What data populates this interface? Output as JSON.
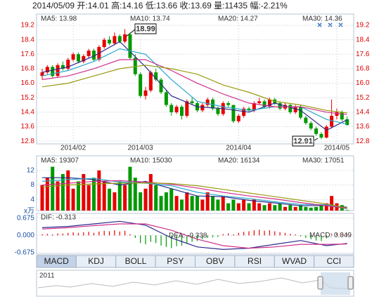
{
  "header": "2014/05/09 开:14.01 高:14.16 低:13.66 收:13.69 量:11435 幅:-2.21%",
  "chart_data": [
    {
      "type": "candlestick",
      "up_color": "#e60000",
      "down_color": "#009900",
      "categories": [
        null,
        null,
        null,
        null,
        null,
        null,
        "2014/02",
        null,
        null,
        null,
        null,
        null,
        null,
        null,
        null,
        null,
        null,
        null,
        null,
        "2014/03",
        null,
        null,
        null,
        null,
        null,
        null,
        null,
        null,
        null,
        null,
        null,
        null,
        null,
        null,
        null,
        null,
        null,
        null,
        "2014/04",
        null,
        null,
        null,
        null,
        null,
        null,
        null,
        null,
        null,
        null,
        null,
        null,
        null,
        null,
        null,
        null,
        null,
        null,
        "2014/05",
        null,
        null
      ],
      "values": [
        [
          16.4,
          16.8,
          16.2,
          16.6
        ],
        [
          16.6,
          17.0,
          16.5,
          16.9
        ],
        [
          16.9,
          17.0,
          16.3,
          16.4
        ],
        [
          16.4,
          17.1,
          16.3,
          17.0
        ],
        [
          17.0,
          17.2,
          16.7,
          16.8
        ],
        [
          16.8,
          17.4,
          16.7,
          17.3
        ],
        [
          17.3,
          17.7,
          17.2,
          17.6
        ],
        [
          17.6,
          17.7,
          17.1,
          17.2
        ],
        [
          17.2,
          17.6,
          17.1,
          17.5
        ],
        [
          17.5,
          17.9,
          17.4,
          17.8
        ],
        [
          17.8,
          17.9,
          17.2,
          17.3
        ],
        [
          17.3,
          18.1,
          17.2,
          18.0
        ],
        [
          18.0,
          18.5,
          17.9,
          18.4
        ],
        [
          18.4,
          18.6,
          18.1,
          18.2
        ],
        [
          18.2,
          18.8,
          18.1,
          18.6
        ],
        [
          18.6,
          18.7,
          18.2,
          18.3
        ],
        [
          18.3,
          18.99,
          18.2,
          18.7
        ],
        [
          18.7,
          18.8,
          17.3,
          17.4
        ],
        [
          17.4,
          17.6,
          16.4,
          16.5
        ],
        [
          16.5,
          16.6,
          15.2,
          15.3
        ],
        [
          15.3,
          15.8,
          15.1,
          15.6
        ],
        [
          15.6,
          16.7,
          15.5,
          16.6
        ],
        [
          16.6,
          16.8,
          16.1,
          16.2
        ],
        [
          16.2,
          16.3,
          15.4,
          15.5
        ],
        [
          15.5,
          15.6,
          14.7,
          14.8
        ],
        [
          14.8,
          14.9,
          14.2,
          14.4
        ],
        [
          14.4,
          14.8,
          14.3,
          14.7
        ],
        [
          14.7,
          14.8,
          14.0,
          14.2
        ],
        [
          14.2,
          15.1,
          14.1,
          15.0
        ],
        [
          15.0,
          15.2,
          14.8,
          14.9
        ],
        [
          14.9,
          15.0,
          14.4,
          14.5
        ],
        [
          14.5,
          14.9,
          14.4,
          14.8
        ],
        [
          14.8,
          15.2,
          14.7,
          15.1
        ],
        [
          15.1,
          15.2,
          14.5,
          14.6
        ],
        [
          14.6,
          14.7,
          14.2,
          14.3
        ],
        [
          14.3,
          15.0,
          14.2,
          14.9
        ],
        [
          14.9,
          15.0,
          14.7,
          14.8
        ],
        [
          14.8,
          14.8,
          13.8,
          13.9
        ],
        [
          13.9,
          14.3,
          13.8,
          14.2
        ],
        [
          14.2,
          14.7,
          14.1,
          14.6
        ],
        [
          14.6,
          14.7,
          14.4,
          14.5
        ],
        [
          14.5,
          15.0,
          14.4,
          14.9
        ],
        [
          14.9,
          15.2,
          14.8,
          15.0
        ],
        [
          15.0,
          15.1,
          14.6,
          14.7
        ],
        [
          14.7,
          15.2,
          14.6,
          15.1
        ],
        [
          15.1,
          15.2,
          14.8,
          14.9
        ],
        [
          14.9,
          15.0,
          14.5,
          14.6
        ],
        [
          14.6,
          14.9,
          14.5,
          14.8
        ],
        [
          14.8,
          14.9,
          14.3,
          14.4
        ],
        [
          14.4,
          14.8,
          14.3,
          14.7
        ],
        [
          14.7,
          14.8,
          14.0,
          14.1
        ],
        [
          14.1,
          14.2,
          13.7,
          13.8
        ],
        [
          13.8,
          13.9,
          13.4,
          13.5
        ],
        [
          13.5,
          13.6,
          13.1,
          13.2
        ],
        [
          13.2,
          13.3,
          12.91,
          13.0
        ],
        [
          13.0,
          13.7,
          12.95,
          13.6
        ],
        [
          13.6,
          15.1,
          13.5,
          14.2
        ],
        [
          14.2,
          14.6,
          14.0,
          14.4
        ],
        [
          14.4,
          14.5,
          13.9,
          14.0
        ],
        [
          14.01,
          14.16,
          13.66,
          13.69
        ]
      ],
      "lines": [
        {
          "label": "MA5: 13.98",
          "color": "#2a2a8a",
          "x": [
            0,
            5,
            10,
            15,
            20,
            25,
            30,
            35,
            40,
            45,
            50,
            55,
            59
          ],
          "values": [
            16.6,
            16.9,
            17.5,
            18.3,
            16.9,
            15.3,
            14.7,
            14.6,
            14.4,
            14.9,
            14.5,
            13.4,
            13.98
          ]
        },
        {
          "label": "MA10: 13.74",
          "color": "#2aa8cc",
          "x": [
            0,
            5,
            10,
            15,
            20,
            25,
            30,
            35,
            40,
            45,
            50,
            55,
            59
          ],
          "values": [
            16.4,
            16.7,
            17.2,
            17.9,
            17.6,
            16.2,
            15.0,
            14.7,
            14.5,
            14.7,
            14.7,
            14.0,
            13.74
          ]
        },
        {
          "label": "MA20: 14.27",
          "color": "#d0308c",
          "x": [
            0,
            5,
            10,
            15,
            20,
            25,
            30,
            35,
            40,
            45,
            50,
            55,
            59
          ],
          "values": [
            16.2,
            16.4,
            16.8,
            17.3,
            17.3,
            16.7,
            16.0,
            15.4,
            14.9,
            14.7,
            14.7,
            14.4,
            14.27
          ]
        },
        {
          "label": "MA30: 14.36",
          "color": "#9a9a10",
          "x": [
            0,
            5,
            10,
            15,
            20,
            25,
            30,
            35,
            40,
            45,
            50,
            55,
            59
          ],
          "values": [
            15.8,
            16.0,
            16.4,
            16.8,
            17.0,
            16.8,
            16.5,
            15.9,
            15.5,
            15.0,
            14.8,
            14.5,
            14.36
          ]
        }
      ],
      "annotations": [
        "18.99",
        "12.91"
      ],
      "ylim": [
        12.65,
        19.82
      ],
      "yticks": [
        19.2,
        18.4,
        17.6,
        16.8,
        {
          "value": 16,
          "label": "16.0"
        },
        15.2,
        14.4,
        13.6,
        12.8
      ],
      "grid": true
    },
    {
      "type": "bar",
      "unit": "x万",
      "values": [
        8,
        10,
        13,
        9,
        11,
        12,
        7,
        9,
        11,
        8,
        10,
        12,
        9,
        7,
        6,
        9,
        8,
        13,
        10,
        6,
        7,
        11,
        8,
        5,
        6,
        7,
        5,
        4,
        6,
        5,
        5,
        4,
        6,
        5,
        4,
        5,
        3,
        4,
        3,
        4,
        3,
        4,
        3,
        2.5,
        3,
        2.5,
        3,
        2,
        2.5,
        2,
        2.5,
        2,
        1.8,
        2,
        2.5,
        3,
        5,
        3,
        2.5,
        1.14
      ],
      "lines": [
        {
          "label": "MA5: 19307",
          "color": "#2a2a8a",
          "x": [
            0,
            5,
            10,
            15,
            20,
            25,
            30,
            35,
            40,
            45,
            50,
            55,
            59
          ],
          "values": [
            10,
            10,
            9.5,
            8,
            9,
            7,
            5,
            4.8,
            3.8,
            3.1,
            2.3,
            2.4,
            1.93
          ]
        },
        {
          "label": "MA10: 15030",
          "color": "#2aa8cc",
          "x": [
            0,
            5,
            10,
            15,
            20,
            25,
            30,
            35,
            40,
            45,
            50,
            55,
            59
          ],
          "values": [
            9,
            9.5,
            9.8,
            8.8,
            8.5,
            7.8,
            6,
            5,
            4.3,
            3.4,
            2.7,
            2.6,
            1.5
          ]
        },
        {
          "label": "MA20: 16134",
          "color": "#d0308c",
          "x": [
            0,
            5,
            10,
            15,
            20,
            25,
            30,
            35,
            40,
            45,
            50,
            55,
            59
          ],
          "values": [
            8,
            8.5,
            9,
            9.2,
            8.8,
            8.2,
            7.2,
            6,
            5,
            4.2,
            3.2,
            2.3,
            1.61
          ]
        },
        {
          "label": "MA30: 17051",
          "color": "#9a9a10",
          "x": [
            0,
            5,
            10,
            15,
            20,
            25,
            30,
            35,
            40,
            45,
            50,
            55,
            59
          ],
          "values": [
            7.5,
            8,
            8.3,
            8.5,
            8.6,
            8.4,
            7.8,
            6.8,
            5.8,
            4.8,
            3.8,
            2.8,
            1.71
          ]
        }
      ],
      "ylim": [
        1,
        16
      ],
      "yticks": [
        12,
        8,
        4
      ],
      "grid": true
    },
    {
      "type": "macd",
      "up_color": "#e60000",
      "down_color": "#009900",
      "values": [
        0.05,
        0.06,
        0.04,
        0.08,
        0.07,
        0.1,
        0.12,
        0.1,
        0.12,
        0.14,
        0.1,
        0.15,
        0.18,
        0.16,
        0.2,
        0.15,
        0.18,
        0.05,
        -0.1,
        -0.3,
        -0.35,
        -0.25,
        -0.3,
        -0.4,
        -0.45,
        -0.5,
        -0.42,
        -0.4,
        -0.3,
        -0.25,
        -0.22,
        -0.15,
        -0.1,
        -0.08,
        -0.06,
        0.05,
        0.08,
        0.04,
        0.1,
        0.14,
        0.16,
        0.2,
        0.22,
        0.18,
        0.2,
        0.16,
        0.12,
        0.1,
        0.06,
        0.04,
        -0.04,
        -0.1,
        -0.15,
        -0.2,
        -0.22,
        -0.12,
        0.05,
        0.08,
        0.06,
        0.049
      ],
      "lines": [
        {
          "label": "DIF: -0.313",
          "color": "#2a2a8a",
          "x": [
            0,
            5,
            10,
            15,
            20,
            25,
            30,
            35,
            40,
            45,
            50,
            55,
            59
          ],
          "values": [
            0.3,
            0.35,
            0.45,
            0.55,
            0.4,
            -0.1,
            -0.45,
            -0.55,
            -0.5,
            -0.35,
            -0.2,
            -0.4,
            -0.313
          ]
        },
        {
          "label": "DEA: -0.338",
          "color": "#d0308c",
          "x": [
            0,
            5,
            10,
            15,
            20,
            25,
            30,
            35,
            40,
            45,
            50,
            55,
            59
          ],
          "values": [
            0.25,
            0.3,
            0.38,
            0.45,
            0.45,
            0.2,
            -0.15,
            -0.4,
            -0.5,
            -0.45,
            -0.35,
            -0.35,
            -0.338
          ]
        }
      ],
      "macd_label": "MACD: 0.049",
      "ylim": [
        -0.73,
        0.86
      ],
      "yticks": [
        0.675,
        {
          "value": 0,
          "label": "0.000"
        },
        -0.675
      ],
      "grid": true
    }
  ],
  "tabs": [
    "MACD",
    "KDJ",
    "BOLL",
    "PSY",
    "OBV",
    "RSI",
    "WVAD",
    "CCI"
  ],
  "navigator": {
    "label": "2011"
  }
}
